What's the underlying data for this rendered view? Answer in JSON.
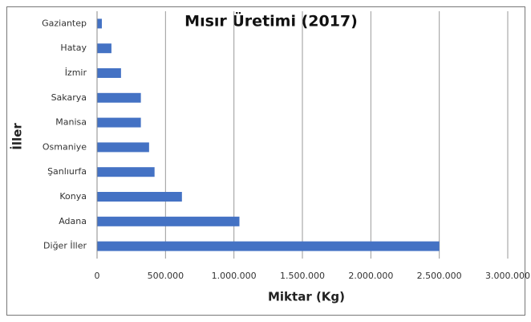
{
  "chart_data": {
    "type": "bar",
    "orientation": "horizontal",
    "title": "Mısır Üretimi (2017)",
    "x_label": "Miktar (Kg)",
    "y_label": "İller",
    "categories": [
      "Gaziantep",
      "Hatay",
      "İzmir",
      "Sakarya",
      "Manisa",
      "Osmaniye",
      "Şanlıurfa",
      "Konya",
      "Adana",
      "Diğer İller"
    ],
    "values": [
      35000,
      105000,
      175000,
      320000,
      320000,
      380000,
      420000,
      620000,
      1040000,
      2500000
    ],
    "color": "#4472c4",
    "xlim": [
      0,
      3000000
    ],
    "xticks": [
      0,
      {
        "value": 500000,
        "label": "500.000"
      },
      {
        "value": 1000000,
        "label": "1.000.000"
      },
      {
        "value": 1500000,
        "label": "1.500.000"
      },
      {
        "value": 2000000,
        "label": "2.000.000"
      },
      {
        "value": 2500000,
        "label": "2.500.000"
      },
      {
        "value": 3000000,
        "label": "3.000.000"
      }
    ],
    "grid": true
  }
}
